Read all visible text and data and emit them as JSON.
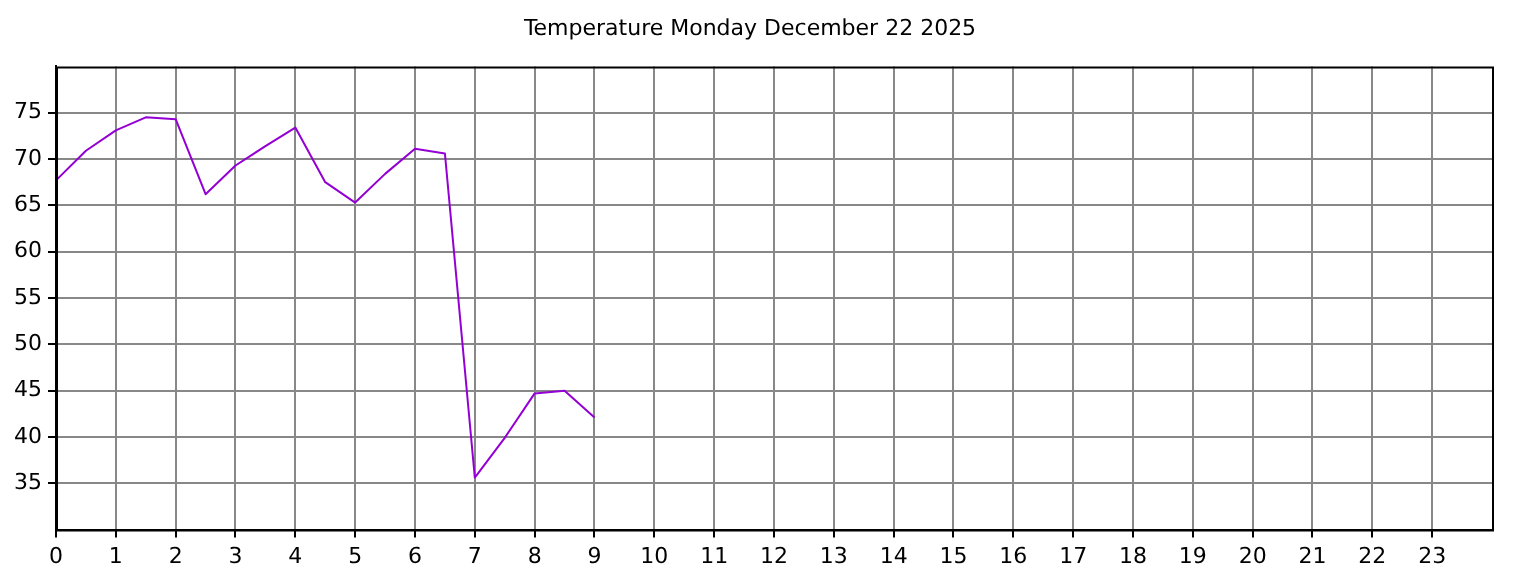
{
  "chart_data": {
    "type": "line",
    "title": "Temperature Monday December 22 2025",
    "x": [
      0,
      0.5,
      1,
      1.5,
      2,
      2.5,
      3,
      3.5,
      4,
      4.5,
      5,
      5.5,
      6,
      6.5,
      7,
      7.5,
      8,
      8.5,
      9
    ],
    "series": [
      {
        "color": "#9400d3",
        "values": [
          67.7,
          70.9,
          73.1,
          74.5,
          74.3,
          66.2,
          69.3,
          71.4,
          73.4,
          67.5,
          65.3,
          68.4,
          71.1,
          70.6,
          35.6,
          39.9,
          44.7,
          45.0,
          42.1
        ]
      }
    ],
    "xlim": [
      0,
      24
    ],
    "xticks": [
      0,
      1,
      2,
      3,
      4,
      5,
      6,
      7,
      8,
      9,
      10,
      11,
      12,
      13,
      14,
      15,
      16,
      17,
      18,
      19,
      20,
      21,
      22,
      23
    ],
    "ylim": [
      30,
      80
    ],
    "yticks": [
      35,
      40,
      45,
      50,
      55,
      60,
      65,
      70,
      75
    ],
    "grid": true,
    "legend": false,
    "marker": "none",
    "line_style": "solid"
  }
}
